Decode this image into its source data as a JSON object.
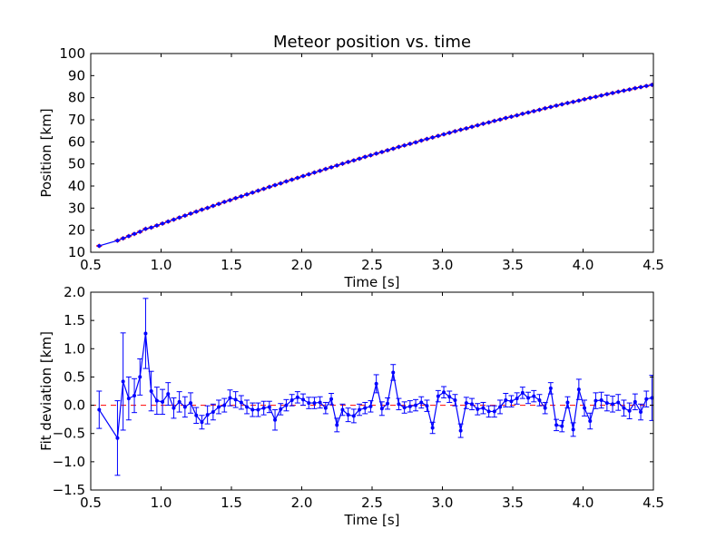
{
  "chart_data": [
    {
      "type": "line",
      "title": "Meteor position vs. time",
      "xlabel": "Time [s]",
      "ylabel": "Position [km]",
      "xlim": [
        0.5,
        4.5
      ],
      "ylim": [
        10,
        100
      ],
      "xticks": [
        "0.5",
        "1.0",
        "1.5",
        "2.0",
        "2.5",
        "3.0",
        "3.5",
        "4.0",
        "4.5"
      ],
      "yticks": [
        "10",
        "20",
        "30",
        "40",
        "50",
        "60",
        "70",
        "80",
        "90",
        "100"
      ],
      "grid": false,
      "colors": {
        "fit": "#0000ff",
        "measurements": "#ff0000"
      },
      "x": [
        0.56,
        0.69,
        0.73,
        0.77,
        0.81,
        0.85,
        0.89,
        0.93,
        0.97,
        1.01,
        1.05,
        1.09,
        1.13,
        1.17,
        1.21,
        1.25,
        1.29,
        1.33,
        1.37,
        1.41,
        1.45,
        1.49,
        1.53,
        1.57,
        1.61,
        1.65,
        1.69,
        1.73,
        1.77,
        1.81,
        1.85,
        1.89,
        1.93,
        1.97,
        2.01,
        2.05,
        2.09,
        2.13,
        2.17,
        2.21,
        2.25,
        2.29,
        2.33,
        2.37,
        2.41,
        2.45,
        2.49,
        2.53,
        2.57,
        2.61,
        2.65,
        2.69,
        2.73,
        2.77,
        2.81,
        2.85,
        2.89,
        2.93,
        2.97,
        3.01,
        3.05,
        3.09,
        3.13,
        3.17,
        3.21,
        3.25,
        3.29,
        3.33,
        3.37,
        3.41,
        3.45,
        3.49,
        3.53,
        3.57,
        3.61,
        3.65,
        3.69,
        3.73,
        3.77,
        3.81,
        3.85,
        3.89,
        3.93,
        3.97,
        4.01,
        4.05,
        4.09,
        4.13,
        4.17,
        4.21,
        4.25,
        4.29,
        4.33,
        4.37,
        4.41,
        4.45,
        4.49
      ],
      "series": [
        {
          "values": [
            12.9,
            15.3,
            16.3,
            17.3,
            18.3,
            19.3,
            20.6,
            21.2,
            22.1,
            23.0,
            23.9,
            24.8,
            25.7,
            26.6,
            27.5,
            28.4,
            29.3,
            30.1,
            31.0,
            31.9,
            32.8,
            33.6,
            34.5,
            35.3,
            36.2,
            37.0,
            37.9,
            38.7,
            39.6,
            40.4,
            41.2,
            42.1,
            42.9,
            43.7,
            44.5,
            45.3,
            46.1,
            46.9,
            47.7,
            48.5,
            49.3,
            50.1,
            50.9,
            51.6,
            52.4,
            53.2,
            53.9,
            54.7,
            55.4,
            56.2,
            56.9,
            57.7,
            58.4,
            59.1,
            59.8,
            60.6,
            61.3,
            62.0,
            62.7,
            63.4,
            64.1,
            64.8,
            65.5,
            66.1,
            66.8,
            67.5,
            68.2,
            68.8,
            69.5,
            70.1,
            70.8,
            71.4,
            72.0,
            72.7,
            73.3,
            73.9,
            74.5,
            75.2,
            75.8,
            76.4,
            77.0,
            77.6,
            78.1,
            78.7,
            79.3,
            79.9,
            80.4,
            81.0,
            81.6,
            82.1,
            82.7,
            83.2,
            83.7,
            84.3,
            84.8,
            85.3,
            85.8
          ]
        }
      ]
    },
    {
      "type": "line",
      "title": "",
      "xlabel": "Time [s]",
      "ylabel": "Fit deviation [km]",
      "xlim": [
        0.5,
        4.5
      ],
      "ylim": [
        -1.5,
        2.0
      ],
      "xticks": [
        "0.5",
        "1.0",
        "1.5",
        "2.0",
        "2.5",
        "3.0",
        "3.5",
        "4.0",
        "4.5"
      ],
      "yticks": [
        "−1.5",
        "−1.0",
        "−0.5",
        "0.0",
        "0.5",
        "1.0",
        "1.5",
        "2.0"
      ],
      "grid": false,
      "zero_line": true,
      "colors": {
        "residuals": "#0000ff",
        "zero": "#ff0000"
      },
      "x": [
        0.56,
        0.69,
        0.73,
        0.77,
        0.81,
        0.85,
        0.89,
        0.93,
        0.97,
        1.01,
        1.05,
        1.09,
        1.13,
        1.17,
        1.21,
        1.25,
        1.29,
        1.33,
        1.37,
        1.41,
        1.45,
        1.49,
        1.53,
        1.57,
        1.61,
        1.65,
        1.69,
        1.73,
        1.77,
        1.81,
        1.85,
        1.89,
        1.93,
        1.97,
        2.01,
        2.05,
        2.09,
        2.13,
        2.17,
        2.21,
        2.25,
        2.29,
        2.33,
        2.37,
        2.41,
        2.45,
        2.49,
        2.53,
        2.57,
        2.61,
        2.65,
        2.69,
        2.73,
        2.77,
        2.81,
        2.85,
        2.89,
        2.93,
        2.97,
        3.01,
        3.05,
        3.09,
        3.13,
        3.17,
        3.21,
        3.25,
        3.29,
        3.33,
        3.37,
        3.41,
        3.45,
        3.49,
        3.53,
        3.57,
        3.61,
        3.65,
        3.69,
        3.73,
        3.77,
        3.81,
        3.85,
        3.89,
        3.93,
        3.97,
        4.01,
        4.05,
        4.09,
        4.13,
        4.17,
        4.21,
        4.25,
        4.29,
        4.33,
        4.37,
        4.41,
        4.45,
        4.49
      ],
      "series": [
        {
          "values": [
            -0.08,
            -0.58,
            0.42,
            0.12,
            0.17,
            0.5,
            1.27,
            0.25,
            0.08,
            0.06,
            0.2,
            -0.05,
            0.06,
            -0.03,
            0.04,
            -0.18,
            -0.3,
            -0.17,
            -0.12,
            -0.03,
            0.0,
            0.13,
            0.1,
            0.05,
            -0.03,
            -0.08,
            -0.08,
            -0.05,
            -0.03,
            -0.26,
            -0.07,
            0.0,
            0.09,
            0.14,
            0.1,
            0.04,
            0.04,
            0.05,
            -0.05,
            0.11,
            -0.35,
            -0.08,
            -0.17,
            -0.19,
            -0.08,
            -0.05,
            -0.02,
            0.38,
            -0.06,
            0.03,
            0.58,
            0.02,
            -0.04,
            -0.02,
            0.0,
            0.05,
            -0.01,
            -0.4,
            0.16,
            0.23,
            0.15,
            0.09,
            -0.45,
            0.04,
            0.02,
            -0.07,
            -0.05,
            -0.11,
            -0.11,
            -0.03,
            0.09,
            0.07,
            0.12,
            0.22,
            0.13,
            0.16,
            0.09,
            -0.05,
            0.3,
            -0.35,
            -0.37,
            0.05,
            -0.43,
            0.28,
            -0.05,
            -0.28,
            0.08,
            0.09,
            0.04,
            0.02,
            0.05,
            -0.05,
            -0.1,
            0.06,
            -0.12,
            0.11,
            0.13
          ],
          "errors": [
            0.33,
            0.66,
            0.86,
            0.38,
            0.3,
            0.32,
            0.62,
            0.35,
            0.24,
            0.22,
            0.2,
            0.18,
            0.18,
            0.18,
            0.18,
            0.14,
            0.12,
            0.16,
            0.14,
            0.12,
            0.12,
            0.14,
            0.14,
            0.12,
            0.12,
            0.12,
            0.12,
            0.12,
            0.1,
            0.18,
            0.1,
            0.1,
            0.1,
            0.1,
            0.1,
            0.1,
            0.1,
            0.1,
            0.1,
            0.1,
            0.12,
            0.1,
            0.12,
            0.12,
            0.1,
            0.1,
            0.1,
            0.16,
            0.12,
            0.1,
            0.14,
            0.1,
            0.1,
            0.1,
            0.1,
            0.1,
            0.1,
            0.1,
            0.1,
            0.1,
            0.1,
            0.1,
            0.12,
            0.1,
            0.1,
            0.1,
            0.1,
            0.1,
            0.1,
            0.12,
            0.12,
            0.1,
            0.1,
            0.1,
            0.1,
            0.1,
            0.1,
            0.1,
            0.1,
            0.1,
            0.1,
            0.1,
            0.12,
            0.18,
            0.14,
            0.14,
            0.14,
            0.14,
            0.14,
            0.14,
            0.14,
            0.14,
            0.14,
            0.14,
            0.14,
            0.14,
            0.4
          ]
        }
      ]
    }
  ]
}
